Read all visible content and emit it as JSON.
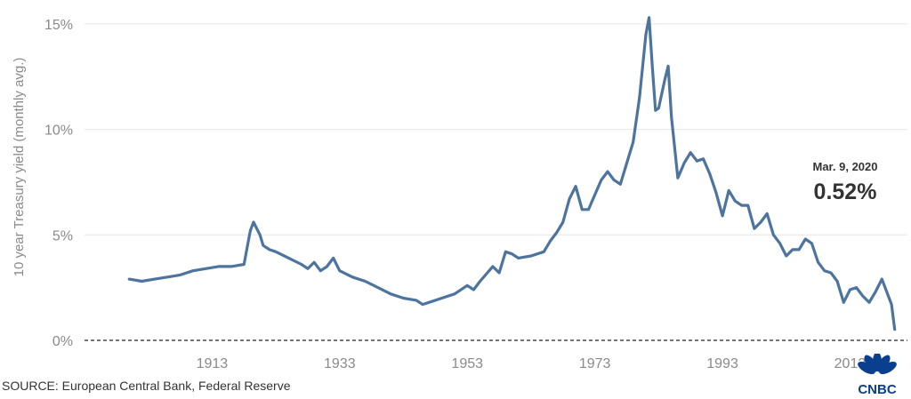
{
  "chart_data": {
    "type": "line",
    "title": "",
    "xlabel": "",
    "ylabel": "10 year Treasury yield (monthly avg.)",
    "x_ticks": [
      "1913",
      "1933",
      "1953",
      "1973",
      "1993",
      "2013"
    ],
    "y_ticks": [
      "0%",
      "5%",
      "10%",
      "15%"
    ],
    "xlim": [
      1893,
      2022
    ],
    "ylim": [
      0,
      15.5
    ],
    "grid": "horizontal",
    "line_color": "#4d739f",
    "series": [
      {
        "x": [
          1900,
          1902,
          1904,
          1906,
          1908,
          1910,
          1912,
          1914,
          1916,
          1918,
          1918.5,
          1919,
          1919.5,
          1920,
          1920.5,
          1921,
          1922,
          1923,
          1925,
          1927,
          1928,
          1929,
          1930,
          1931,
          1932,
          1932.5,
          1933,
          1935,
          1937,
          1939,
          1941,
          1943,
          1945,
          1946,
          1947,
          1949,
          1951,
          1953,
          1954,
          1955,
          1957,
          1958,
          1959,
          1960,
          1961,
          1963,
          1965,
          1966,
          1967,
          1968,
          1969,
          1970,
          1971,
          1972,
          1973,
          1974,
          1975,
          1976,
          1977,
          1978,
          1979,
          1980,
          1980.5,
          1981,
          1981.5,
          1982,
          1982.5,
          1983,
          1984,
          1984.5,
          1985,
          1986,
          1987,
          1988,
          1989,
          1990,
          1991,
          1992,
          1993,
          1994,
          1995,
          1996,
          1997,
          1998,
          1999,
          2000,
          2001,
          2002,
          2003,
          2004,
          2005,
          2006,
          2007,
          2008,
          2009,
          2010,
          2011,
          2012,
          2013,
          2014,
          2015,
          2016,
          2017,
          2018,
          2019,
          2019.5,
          2020
        ],
        "y": [
          2.9,
          2.8,
          2.9,
          3.0,
          3.1,
          3.3,
          3.4,
          3.5,
          3.5,
          3.6,
          4.4,
          5.2,
          5.6,
          5.3,
          5.0,
          4.5,
          4.3,
          4.2,
          3.9,
          3.6,
          3.4,
          3.7,
          3.3,
          3.5,
          3.9,
          3.6,
          3.3,
          3.0,
          2.8,
          2.5,
          2.2,
          2.0,
          1.9,
          1.7,
          1.8,
          2.0,
          2.2,
          2.6,
          2.4,
          2.8,
          3.5,
          3.2,
          4.2,
          4.1,
          3.9,
          4.0,
          4.2,
          4.7,
          5.1,
          5.6,
          6.7,
          7.3,
          6.2,
          6.2,
          6.9,
          7.6,
          8.0,
          7.6,
          7.4,
          8.4,
          9.4,
          11.5,
          13.0,
          14.5,
          15.3,
          13.0,
          10.9,
          11.0,
          12.4,
          13.0,
          10.6,
          7.7,
          8.4,
          8.9,
          8.5,
          8.6,
          7.9,
          7.0,
          5.9,
          7.1,
          6.6,
          6.4,
          6.4,
          5.3,
          5.6,
          6.0,
          5.0,
          4.6,
          4.0,
          4.3,
          4.3,
          4.8,
          4.6,
          3.7,
          3.3,
          3.2,
          2.8,
          1.8,
          2.4,
          2.5,
          2.1,
          1.8,
          2.3,
          2.9,
          2.1,
          1.7,
          0.52
        ]
      }
    ],
    "annotation": {
      "date": "Mar. 9, 2020",
      "value": "0.52%",
      "x": 2020,
      "y": 0.52
    }
  },
  "source": "SOURCE: European Central Bank, Federal Reserve",
  "logo": {
    "text": "CNBC",
    "icon": "nbc-peacock-icon",
    "color": "#0a3f8f"
  }
}
